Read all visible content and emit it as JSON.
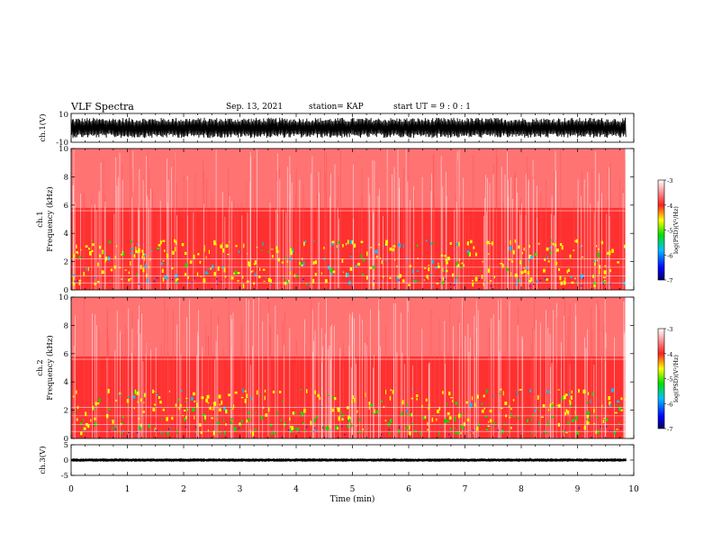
{
  "header": {
    "title": "VLF Spectra",
    "date": "Sep. 13, 2021",
    "station": "station= KAP",
    "start": "start  UT  =   9  : 0   : 1"
  },
  "chart_data": [
    {
      "type": "line",
      "panel": "ch1-waveform",
      "ylabel": "ch.1(V)",
      "ylim": [
        -10,
        10
      ],
      "y_ticks": [
        "10",
        "-10"
      ],
      "xlim": [
        0,
        10
      ],
      "series": [
        {
          "values_range": [
            -7,
            7
          ]
        }
      ],
      "notes": "dense oscillating waveform filling most of range"
    },
    {
      "type": "heatmap",
      "panel": "ch1-spectrogram",
      "ylabel": "ch.1\nFrequency  (kHz)",
      "ylim": [
        0,
        10
      ],
      "y_ticks": [
        "0",
        "2",
        "4",
        "6",
        "8",
        "10"
      ],
      "xlim": [
        0,
        10
      ],
      "data_end_min": 9.85,
      "colorbar": {
        "label": "log(PSD)(V²/Hz)",
        "ticks": [
          "-3",
          "-4",
          "-5",
          "-6",
          "-7"
        ],
        "range": [
          -7,
          -3
        ]
      }
    },
    {
      "type": "heatmap",
      "panel": "ch2-spectrogram",
      "ylabel": "ch.2\nFrequency  (kHz)",
      "ylim": [
        0,
        10
      ],
      "y_ticks": [
        "0",
        "2",
        "4",
        "6",
        "8",
        "10"
      ],
      "xlim": [
        0,
        10
      ],
      "data_end_min": 9.85,
      "colorbar": {
        "label": "log(PSD)(V²/Hz)",
        "ticks": [
          "-3",
          "-4",
          "-5",
          "-6",
          "-7"
        ],
        "range": [
          -7,
          -3
        ]
      }
    },
    {
      "type": "line",
      "panel": "ch3-waveform",
      "ylabel": "ch.3(V)",
      "ylim": [
        -5,
        5
      ],
      "y_ticks": [
        "5",
        "0",
        "-5"
      ],
      "xlim": [
        0,
        10
      ],
      "xlabel": "Time  (min)",
      "x_ticks": [
        "0",
        "1",
        "2",
        "3",
        "4",
        "5",
        "6",
        "7",
        "8",
        "9",
        "10"
      ],
      "series": [
        {
          "values_range": [
            -0.5,
            0.5
          ]
        }
      ]
    }
  ],
  "colors": {
    "low": "#000060",
    "blue": "#0000ff",
    "cyan": "#00c0ff",
    "green": "#00e000",
    "yellow": "#ffff00",
    "red": "#ff2020",
    "high": "#ffffff"
  }
}
